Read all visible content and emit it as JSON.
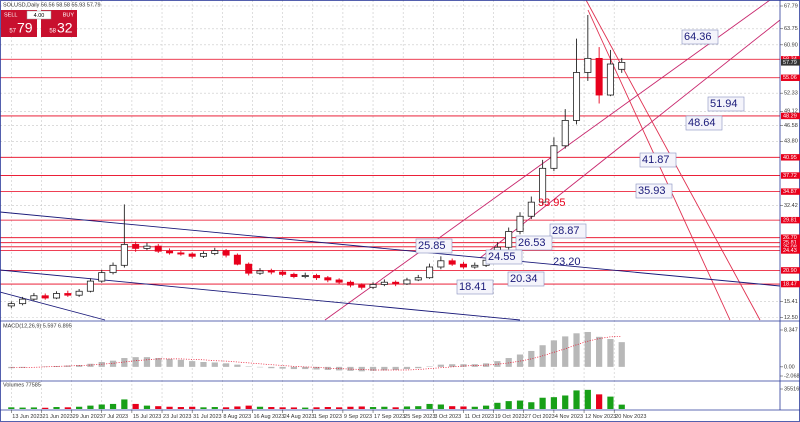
{
  "chart_data": {
    "type": "candlestick",
    "title": "SOLUSD,Daily  56.56 58.58 55.93 57.79",
    "trade_panel": {
      "sell": "SELL",
      "sell_big": "57",
      "sell_small": "79",
      "lot": "4.00",
      "buy": "BUY",
      "buy_big": "58",
      "buy_small": "32"
    },
    "x": [
      0,
      3,
      6,
      9,
      12,
      15,
      18,
      21,
      24,
      27,
      30,
      33,
      36,
      39,
      42,
      45,
      48,
      51,
      54,
      57,
      60,
      63,
      66,
      69,
      72,
      75,
      78,
      81,
      84,
      87,
      90,
      93,
      96,
      99,
      102,
      105,
      108,
      111,
      114,
      117,
      120,
      123,
      126,
      129,
      132,
      135,
      138,
      141,
      144,
      147,
      150,
      153,
      156,
      159,
      162
    ],
    "open": [
      14.6,
      15.0,
      15.8,
      16.4,
      16.0,
      16.8,
      16.5,
      17.2,
      19.0,
      20.5,
      21.8,
      25.5,
      24.8,
      25.2,
      24.3,
      24.0,
      23.8,
      23.4,
      23.9,
      24.4,
      23.6,
      22.0,
      20.4,
      20.8,
      20.6,
      20.2,
      19.8,
      20.0,
      19.6,
      19.2,
      18.8,
      18.3,
      17.9,
      18.4,
      18.8,
      18.5,
      19.2,
      19.6,
      21.5,
      22.6,
      22.0,
      21.5,
      21.8,
      22.7,
      25.0,
      27.8,
      30.5,
      33.0,
      39.0,
      43.0,
      47.5,
      56.0,
      58.5,
      52.0,
      56.56
    ],
    "high": [
      15.4,
      16.2,
      16.9,
      16.8,
      17.2,
      17.3,
      17.6,
      19.5,
      21.0,
      22.3,
      32.6,
      26.0,
      25.8,
      25.6,
      24.8,
      24.4,
      24.1,
      24.3,
      24.9,
      24.7,
      23.9,
      22.3,
      21.3,
      21.2,
      20.9,
      20.5,
      20.5,
      20.3,
      19.9,
      19.5,
      19.1,
      18.6,
      18.8,
      19.3,
      19.1,
      19.6,
      20.1,
      22.1,
      23.4,
      23.0,
      22.4,
      22.3,
      23.2,
      25.9,
      28.5,
      31.2,
      34.0,
      40.5,
      44.5,
      49.5,
      62.0,
      66.2,
      60.5,
      60.0,
      58.58
    ],
    "low": [
      14.2,
      14.7,
      15.5,
      15.7,
      15.8,
      16.2,
      16.2,
      17.0,
      18.7,
      20.2,
      21.4,
      24.2,
      24.5,
      24.0,
      23.7,
      23.5,
      23.0,
      23.1,
      23.6,
      23.2,
      21.8,
      20.0,
      20.1,
      20.2,
      19.9,
      19.5,
      19.5,
      19.2,
      18.8,
      18.4,
      17.9,
      17.5,
      17.6,
      18.1,
      18.1,
      18.3,
      19.0,
      19.4,
      21.1,
      21.7,
      21.2,
      21.2,
      21.5,
      22.5,
      24.6,
      27.3,
      30.0,
      32.5,
      38.5,
      42.5,
      46.8,
      54.5,
      50.5,
      51.8,
      55.93
    ],
    "close": [
      15.0,
      15.8,
      16.4,
      16.0,
      16.8,
      16.5,
      17.2,
      19.0,
      20.5,
      21.8,
      25.5,
      24.8,
      25.2,
      24.3,
      24.0,
      23.8,
      23.4,
      23.9,
      24.4,
      23.6,
      22.0,
      20.4,
      20.8,
      20.6,
      20.2,
      19.8,
      20.0,
      19.6,
      19.2,
      18.8,
      18.3,
      17.9,
      18.4,
      18.8,
      18.5,
      19.2,
      19.6,
      21.5,
      22.6,
      22.0,
      21.5,
      21.8,
      22.7,
      25.0,
      27.8,
      30.5,
      33.0,
      39.0,
      43.0,
      47.5,
      56.0,
      58.5,
      52.0,
      57.5,
      57.79
    ],
    "up_color": "#222222",
    "down_color": "#e8001c",
    "xlim": [
      -3,
      204
    ],
    "xticks": [
      {
        "value": 0,
        "label": "13 Jun 2023"
      },
      {
        "value": 8,
        "label": "21 Jun 2023"
      },
      {
        "value": 16,
        "label": "29 Jun 2023"
      },
      {
        "value": 24,
        "label": "7 Jul 2023"
      },
      {
        "value": 32,
        "label": "15 Jul 2023"
      },
      {
        "value": 40,
        "label": "23 Jul 2023"
      },
      {
        "value": 48,
        "label": "31 Jul 2023"
      },
      {
        "value": 56,
        "label": "8 Aug 2023"
      },
      {
        "value": 64,
        "label": "16 Aug 2023"
      },
      {
        "value": 72,
        "label": "24 Aug 2023"
      },
      {
        "value": 80,
        "label": "1 Sep 2023"
      },
      {
        "value": 88,
        "label": "9 Sep 2023"
      },
      {
        "value": 96,
        "label": "17 Sep 2023"
      },
      {
        "value": 104,
        "label": "25 Sep 2023"
      },
      {
        "value": 112,
        "label": "3 Oct 2023"
      },
      {
        "value": 120,
        "label": "11 Oct 2023"
      },
      {
        "value": 128,
        "label": "19 Oct 2023"
      },
      {
        "value": 136,
        "label": "27 Oct 2023"
      },
      {
        "value": 144,
        "label": "4 Nov 2023"
      },
      {
        "value": 152,
        "label": "12 Nov 2023"
      },
      {
        "value": 160,
        "label": "20 Nov 2023"
      }
    ],
    "ylim": [
      12.1,
      68.5
    ],
    "yticks": [
      67.79,
      63.75,
      {
        "value": 60.9,
        "label": "60.90"
      },
      52.33,
      49.12,
      46.58,
      {
        "value": 43.8,
        "label": "43.80"
      },
      32.42,
      15.41,
      {
        "value": 12.5,
        "label": "12.50"
      }
    ],
    "grid": true,
    "levels": [
      58.34,
      55.06,
      48.29,
      40.95,
      37.72,
      34.87,
      29.81,
      {
        "value": 26.7,
        "label": "26.70"
      },
      25.81,
      25.08,
      24.43,
      {
        "value": 20.9,
        "label": "20.90"
      },
      18.47
    ],
    "level_color": "#e8001c",
    "annotations": [
      "64.36",
      "51.94",
      "48.64",
      "41.87",
      "35.93",
      "33.95",
      "28.87",
      "26.53",
      "25.85",
      "24.55",
      "23.20",
      "20.34",
      "18.41"
    ],
    "macd": {
      "title": "MACD(12,26,9) 5.597 6.895",
      "histogram": [
        -0.3,
        -0.2,
        0.0,
        0.1,
        0.2,
        0.3,
        0.4,
        0.7,
        1.1,
        1.4,
        2.0,
        2.2,
        2.2,
        2.0,
        1.8,
        1.6,
        1.3,
        1.1,
        1.0,
        0.8,
        0.5,
        0.1,
        -0.1,
        -0.3,
        -0.4,
        -0.5,
        -0.5,
        -0.6,
        -0.7,
        -0.8,
        -0.9,
        -1.0,
        -0.9,
        -0.8,
        -0.7,
        -0.5,
        -0.3,
        0.1,
        0.5,
        0.6,
        0.6,
        0.6,
        0.8,
        1.3,
        2.0,
        2.8,
        3.6,
        4.9,
        6.0,
        6.9,
        7.6,
        7.9,
        6.8,
        6.3,
        5.597
      ],
      "signal": [
        -0.2,
        -0.2,
        -0.1,
        0.0,
        0.1,
        0.2,
        0.3,
        0.4,
        0.6,
        0.8,
        1.1,
        1.4,
        1.6,
        1.8,
        1.8,
        1.8,
        1.7,
        1.6,
        1.4,
        1.3,
        1.1,
        0.9,
        0.7,
        0.5,
        0.3,
        0.1,
        0.0,
        -0.1,
        -0.3,
        -0.4,
        -0.5,
        -0.6,
        -0.7,
        -0.7,
        -0.7,
        -0.7,
        -0.6,
        -0.4,
        -0.2,
        0.0,
        0.2,
        0.3,
        0.4,
        0.6,
        0.9,
        1.3,
        1.8,
        2.5,
        3.3,
        4.1,
        5.0,
        5.8,
        6.4,
        6.8,
        6.895
      ],
      "ylim": [
        -2.068,
        8.347
      ],
      "yticks": [
        8.347,
        {
          "value": 0,
          "label": "0.00"
        },
        -2.068
      ]
    },
    "volume": {
      "title": "Volumes 77585",
      "values": [
        30000,
        25000,
        28000,
        22000,
        35000,
        30000,
        40000,
        60000,
        80000,
        90000,
        170000,
        90000,
        60000,
        50000,
        40000,
        35000,
        40000,
        30000,
        35000,
        30000,
        45000,
        60000,
        40000,
        35000,
        30000,
        28000,
        25000,
        30000,
        35000,
        30000,
        40000,
        45000,
        35000,
        40000,
        30000,
        45000,
        50000,
        90000,
        80000,
        50000,
        45000,
        40000,
        60000,
        110000,
        140000,
        150000,
        120000,
        200000,
        210000,
        240000,
        330000,
        340000,
        260000,
        220000,
        77585
      ],
      "ylim": [
        0,
        355169
      ],
      "yticks": [
        355169
      ],
      "up_color": "#18a018",
      "down_color": "#e8001c"
    }
  }
}
